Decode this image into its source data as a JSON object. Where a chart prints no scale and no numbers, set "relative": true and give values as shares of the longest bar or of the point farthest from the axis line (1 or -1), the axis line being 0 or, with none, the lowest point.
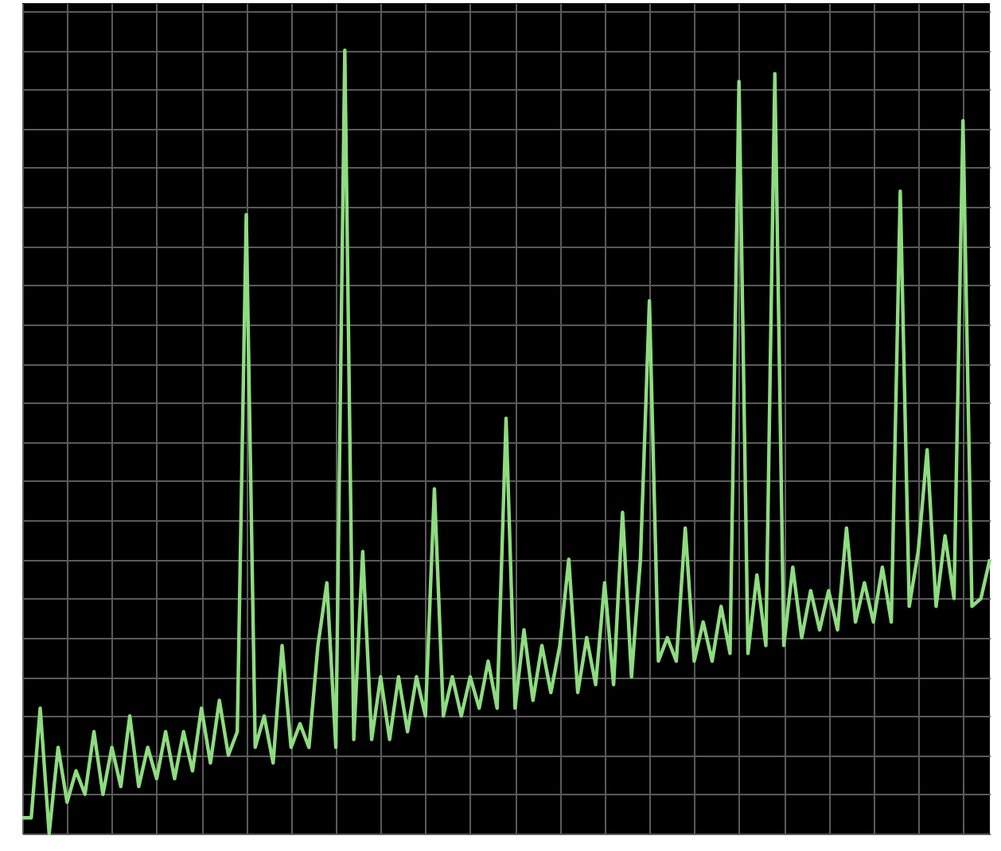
{
  "chart_data": {
    "type": "line",
    "relative": true,
    "grid": true,
    "categories": [
      null,
      null,
      null,
      null,
      null,
      null,
      null,
      null,
      null,
      null,
      null,
      null,
      null,
      null,
      null,
      null,
      null,
      null,
      null,
      null,
      null,
      null,
      null,
      null,
      null,
      null,
      null,
      null,
      null,
      null,
      null,
      null,
      null,
      null,
      null,
      null,
      null,
      null,
      null,
      null,
      null,
      null,
      null,
      null,
      null,
      null,
      null,
      null,
      null,
      null,
      null,
      null,
      null,
      null,
      null,
      null,
      null,
      null,
      null,
      null,
      null,
      null,
      null,
      null,
      null,
      null,
      null,
      null,
      null,
      null,
      null,
      null,
      null,
      null,
      null,
      null,
      null,
      null,
      null,
      null,
      null,
      null,
      null,
      null,
      null,
      null,
      null,
      null,
      null,
      null,
      null,
      null,
      null,
      null,
      null,
      null,
      null,
      null,
      null,
      null,
      null,
      null,
      null,
      null,
      null,
      null,
      null,
      null,
      null
    ],
    "series": [
      {
        "color": "#8fdc80",
        "values": [
          0.02,
          0.02,
          0.16,
          0,
          0.11,
          0.04,
          0.08,
          0.05,
          0.13,
          0.05,
          0.11,
          0.06,
          0.15,
          0.06,
          0.11,
          0.07,
          0.13,
          0.07,
          0.13,
          0.08,
          0.16,
          0.09,
          0.17,
          0.1,
          0.13,
          0.79,
          0.11,
          0.15,
          0.09,
          0.24,
          0.11,
          0.14,
          0.11,
          0.24,
          0.32,
          0.11,
          1,
          0.12,
          0.36,
          0.12,
          0.2,
          0.12,
          0.2,
          0.13,
          0.2,
          0.15,
          0.44,
          0.15,
          0.2,
          0.15,
          0.2,
          0.16,
          0.22,
          0.16,
          0.53,
          0.16,
          0.26,
          0.17,
          0.24,
          0.18,
          0.24,
          0.35,
          0.18,
          0.25,
          0.19,
          0.32,
          0.19,
          0.41,
          0.2,
          0.35,
          0.68,
          0.22,
          0.25,
          0.22,
          0.39,
          0.22,
          0.27,
          0.22,
          0.29,
          0.23,
          0.96,
          0.23,
          0.33,
          0.24,
          0.97,
          0.24,
          0.34,
          0.25,
          0.31,
          0.26,
          0.31,
          0.26,
          0.39,
          0.27,
          0.32,
          0.27,
          0.34,
          0.27,
          0.82,
          0.29,
          0.36,
          0.49,
          0.29,
          0.38,
          0.3,
          0.91,
          0.29,
          0.3,
          0.35
        ]
      }
    ]
  }
}
